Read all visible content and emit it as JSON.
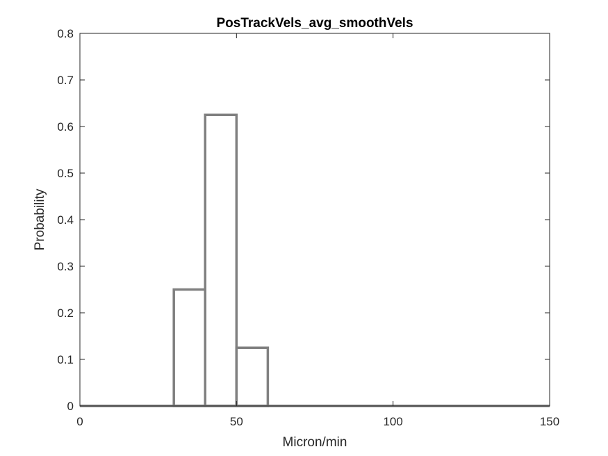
{
  "chart_data": {
    "type": "histogram",
    "title": "PosTrackVels_avg_smoothVels",
    "xlabel": "Micron/min",
    "ylabel": "Probability",
    "xlim": [
      0,
      150
    ],
    "ylim": [
      0,
      0.8
    ],
    "xticks": [
      0,
      50,
      100,
      150
    ],
    "yticks": [
      0,
      0.1,
      0.2,
      0.3,
      0.4,
      0.5,
      0.6,
      0.7,
      0.8
    ],
    "xtick_labels": [
      "0",
      "50",
      "100",
      "150"
    ],
    "ytick_labels": [
      "0",
      "0.1",
      "0.2",
      "0.3",
      "0.4",
      "0.5",
      "0.6",
      "0.7",
      "0.8"
    ],
    "bin_edges": [
      0,
      10,
      20,
      30,
      40,
      50,
      60,
      70,
      80,
      90,
      100,
      110,
      120,
      130,
      140,
      150
    ],
    "values": [
      0,
      0,
      0,
      0.25,
      0.625,
      0.125,
      0,
      0,
      0,
      0,
      0,
      0,
      0,
      0,
      0
    ],
    "display_style": "stairs",
    "grid": false,
    "colors": {
      "series": "#808080",
      "axes": "#262626",
      "background": "#ffffff"
    }
  }
}
